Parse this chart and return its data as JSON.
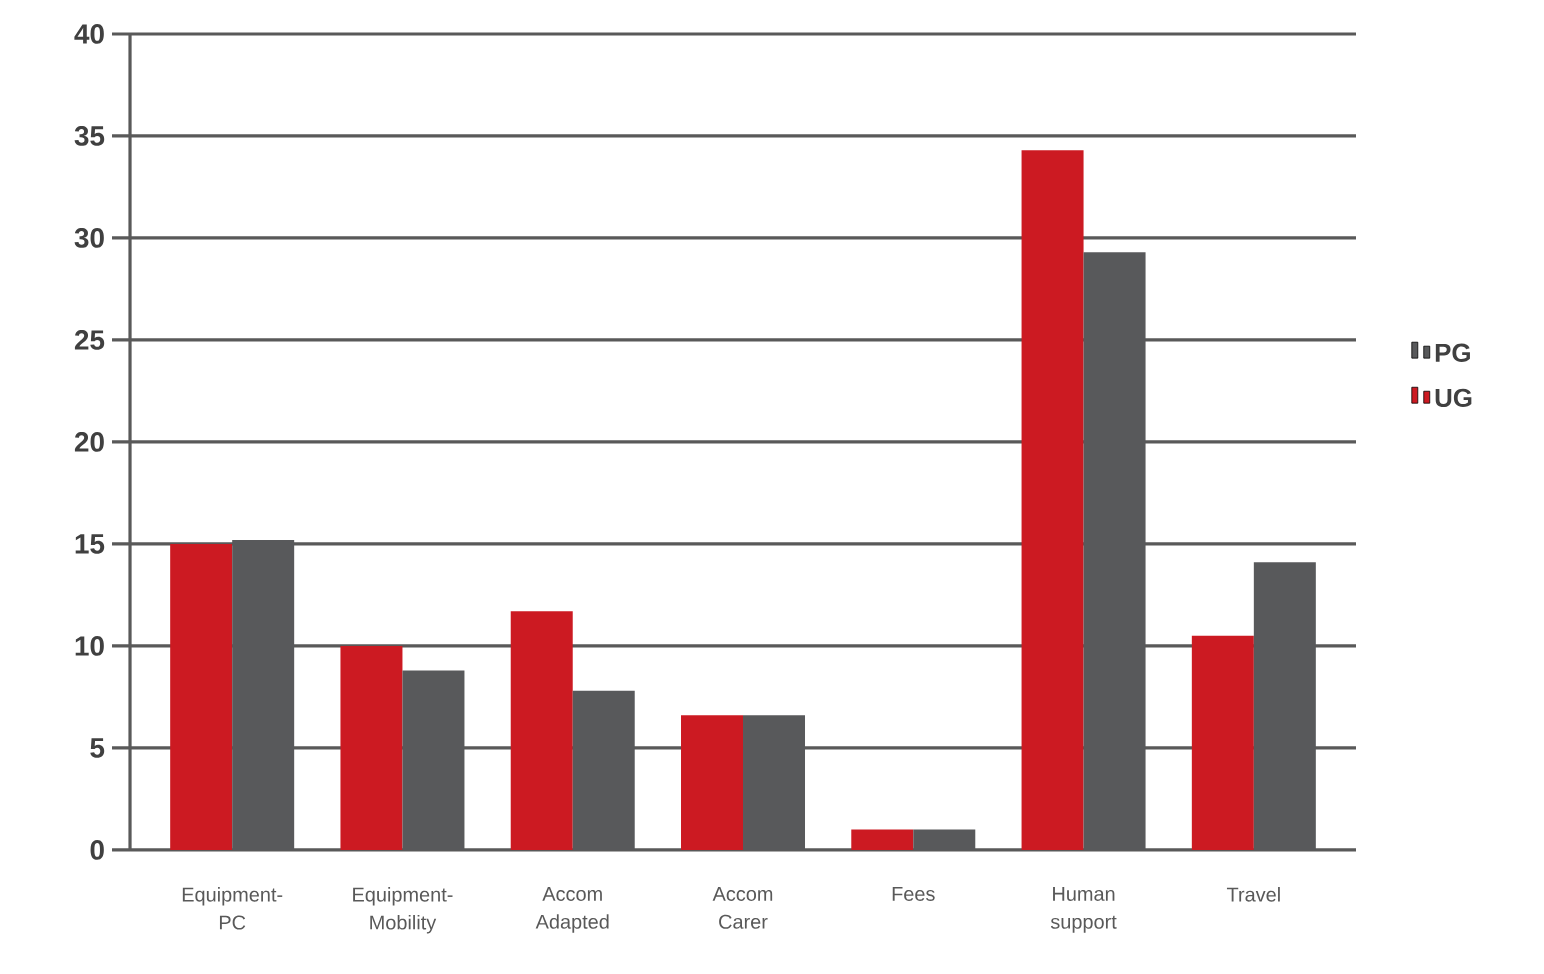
{
  "chart_data": {
    "type": "bar",
    "categories": [
      "Equipment- PC",
      "Equipment- Mobility",
      "Accom Adapted",
      "Accom Carer",
      "Fees",
      "Human support",
      "Travel"
    ],
    "series": [
      {
        "name": "UG",
        "color": "#cc1a22",
        "values": [
          15,
          10,
          11.7,
          6.6,
          1,
          34.3,
          10.5
        ]
      },
      {
        "name": "PG",
        "color": "#58595b",
        "values": [
          15.2,
          8.8,
          7.8,
          6.6,
          1,
          29.3,
          14.1
        ]
      }
    ],
    "ylim": [
      0,
      40
    ],
    "yticks": [
      0,
      5,
      10,
      15,
      20,
      25,
      30,
      35,
      40
    ],
    "grid": "y",
    "legend": "right"
  }
}
